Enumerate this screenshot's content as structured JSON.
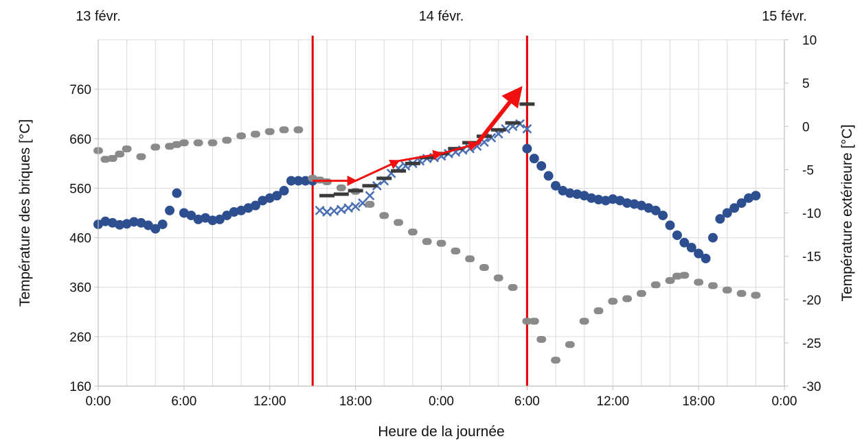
{
  "chart_data": {
    "type": "scatter",
    "title": "",
    "xlabel": "Heure de la journée",
    "ylabel_left": "Température des briques [°C]",
    "ylabel_right": "Température extérieure [°C]",
    "date_labels": [
      "13 févr.",
      "14 févr.",
      "15 févr."
    ],
    "x_tick_labels": [
      "0:00",
      "6:00",
      "12:00",
      "18:00",
      "0:00",
      "6:00",
      "12:00",
      "18:00",
      "0:00"
    ],
    "x_range_hours": [
      0,
      48
    ],
    "y_left_range": [
      160,
      860
    ],
    "y_left_ticks": [
      "160",
      "260",
      "360",
      "460",
      "560",
      "660",
      "760"
    ],
    "y_right_range": [
      -30,
      10
    ],
    "y_right_ticks": [
      "-30",
      "-25",
      "-20",
      "-15",
      "-10",
      "-5",
      "0",
      "5",
      "10"
    ],
    "grid": true,
    "vertical_markers_hours": [
      15,
      30
    ],
    "colors": {
      "brick": "#2e4f8f",
      "brick_cross": "#4a6fb3",
      "outdoor": "#8a8a8a",
      "steps": "#3a3a3a",
      "markers": "#e00000",
      "arrows": "#f01010",
      "grid": "#d9d9d9"
    },
    "series": [
      {
        "marker": "circle",
        "color": "#2e4f8f",
        "axis": "left",
        "x": [
          0,
          0.5,
          1,
          1.5,
          2,
          2.5,
          3,
          3.5,
          4,
          4.5,
          5,
          5.5,
          6,
          6.5,
          7,
          7.5,
          8,
          8.5,
          9,
          9.5,
          10,
          10.5,
          11,
          11.5,
          12,
          12.5,
          13,
          13.5,
          14,
          14.5,
          15
        ],
        "y": [
          487,
          493,
          490,
          486,
          488,
          492,
          490,
          485,
          478,
          487,
          515,
          550,
          510,
          505,
          497,
          500,
          495,
          497,
          505,
          512,
          515,
          520,
          525,
          535,
          540,
          545,
          555,
          575,
          575,
          575,
          575
        ]
      },
      {
        "marker": "cross",
        "color": "#4a6fb3",
        "axis": "left",
        "x": [
          15.5,
          16,
          16.5,
          17,
          17.5,
          18,
          18.5,
          19,
          19.5,
          20,
          20.5,
          21,
          21.5,
          22,
          22.5,
          23,
          23.5,
          24,
          24.5,
          25,
          25.5,
          26,
          26.5,
          27,
          27.5,
          28,
          28.5,
          29,
          29.5,
          30
        ],
        "y": [
          515,
          512,
          514,
          517,
          520,
          523,
          530,
          545,
          565,
          575,
          590,
          600,
          605,
          610,
          615,
          620,
          622,
          625,
          630,
          633,
          637,
          640,
          645,
          653,
          662,
          670,
          680,
          685,
          690,
          680
        ]
      },
      {
        "marker": "circle",
        "color": "#2e4f8f",
        "axis": "left",
        "x": [
          30,
          30.5,
          31,
          31.5,
          32,
          32.5,
          33,
          33.5,
          34,
          34.5,
          35,
          35.5,
          36,
          36.5,
          37,
          37.5,
          38,
          38.5,
          39,
          39.5,
          40,
          40.5,
          41,
          41.5,
          42,
          42.5,
          43,
          43.5,
          44,
          44.5,
          45,
          45.5,
          46
        ],
        "y": [
          640,
          620,
          605,
          585,
          565,
          555,
          550,
          548,
          545,
          540,
          537,
          535,
          538,
          535,
          530,
          528,
          525,
          520,
          515,
          505,
          485,
          465,
          450,
          440,
          428,
          418,
          460,
          498,
          510,
          520,
          530,
          540,
          545
        ]
      },
      {
        "marker": "circle-small",
        "color": "#8a8a8a",
        "axis": "right",
        "x": [
          0,
          0.5,
          1,
          1.5,
          2,
          3,
          4,
          5,
          5.5,
          6,
          7,
          8,
          9,
          10,
          11,
          12,
          13,
          14,
          15,
          15.5,
          16,
          17,
          18,
          19,
          20,
          21,
          22,
          23,
          24,
          25,
          26,
          27,
          28,
          29,
          30,
          30.5,
          31,
          32,
          33,
          34,
          35,
          36,
          37,
          38,
          39,
          40,
          40.5,
          41,
          42,
          43,
          44,
          45,
          46
        ],
        "y": [
          -2.8,
          -3.8,
          -3.7,
          -3.2,
          -2.6,
          -3.5,
          -2.4,
          -2.3,
          -2.1,
          -1.9,
          -1.9,
          -1.9,
          -1.6,
          -1.1,
          -0.9,
          -0.6,
          -0.4,
          -0.4,
          -6.0,
          -6.2,
          -6.4,
          -7.1,
          -7.5,
          -9.0,
          -10.3,
          -11.1,
          -12.2,
          -13.3,
          -13.5,
          -14.4,
          -15.3,
          -16.3,
          -17.5,
          -18.6,
          -22.5,
          -22.5,
          -24.6,
          -27.0,
          -25.2,
          -22.5,
          -21.3,
          -20.2,
          -19.9,
          -19.3,
          -18.3,
          -17.8,
          -17.3,
          -17.2,
          -18.0,
          -18.4,
          -18.9,
          -19.3,
          -19.5
        ]
      },
      {
        "marker": "dash",
        "color": "#3a3a3a",
        "axis": "left",
        "x": [
          16,
          17,
          18,
          19,
          20,
          21,
          22,
          23,
          24,
          25,
          26,
          27,
          28,
          29,
          30
        ],
        "y": [
          545,
          548,
          555,
          565,
          580,
          595,
          610,
          622,
          630,
          640,
          652,
          665,
          678,
          692,
          730
        ]
      }
    ],
    "arrows": [
      {
        "from": [
          15,
          575
        ],
        "to": [
          18,
          575
        ]
      },
      {
        "from": [
          18,
          575
        ],
        "to": [
          21,
          615
        ]
      },
      {
        "from": [
          21,
          615
        ],
        "to": [
          24,
          630
        ]
      },
      {
        "from": [
          24,
          630
        ],
        "to": [
          26.5,
          650
        ]
      },
      {
        "from": [
          26.5,
          650
        ],
        "to": [
          29.5,
          760
        ]
      }
    ]
  }
}
